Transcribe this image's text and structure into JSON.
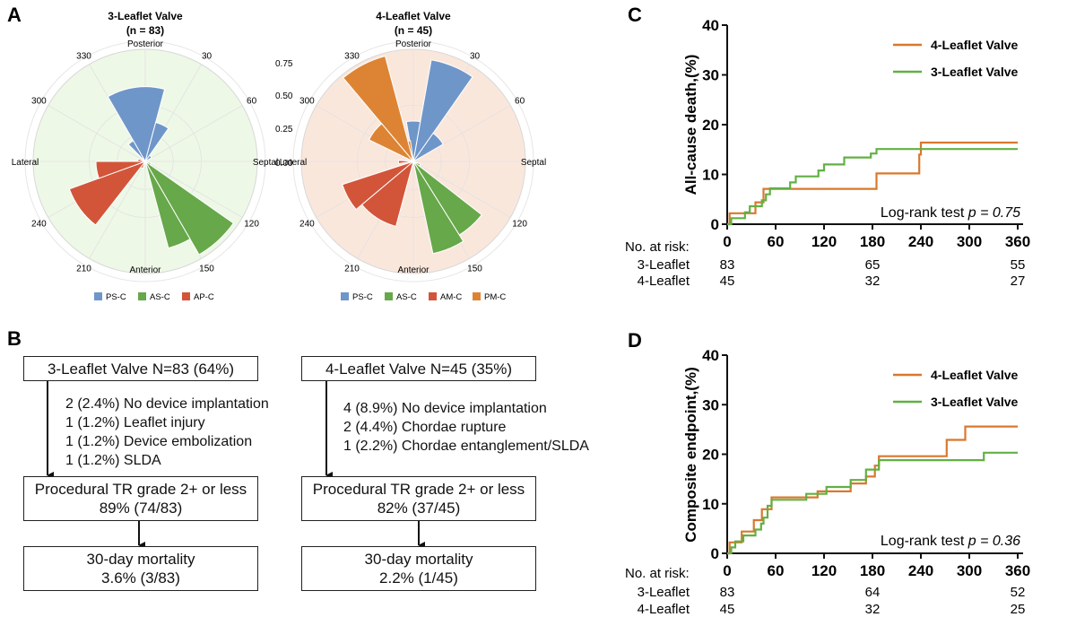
{
  "panels": {
    "A": "A",
    "B": "B",
    "C": "C",
    "D": "D"
  },
  "chart_data": [
    {
      "type": "polar-bar",
      "panel": "A",
      "title": "3-Leaflet Valve",
      "subtitle": "(n = 83)",
      "direction_labels": [
        "Posterior",
        "Septal",
        "Anterior",
        "Lateral"
      ],
      "angle_ticks": [
        "30",
        "60",
        "120",
        "150",
        "210",
        "240",
        "300",
        "330"
      ],
      "radial_ticks": [
        "0.00",
        "0.25",
        "0.50",
        "0.75"
      ],
      "rmax": 0.75,
      "legend": [
        {
          "name": "PS-C",
          "color": "#6f96c9"
        },
        {
          "name": "AS-C",
          "color": "#67a84a"
        },
        {
          "name": "AP-C",
          "color": "#d2553a"
        }
      ],
      "bars": [
        {
          "start": 330,
          "end": 15,
          "r": 0.5,
          "series": "PS-C"
        },
        {
          "start": 15,
          "end": 35,
          "r": 0.27,
          "series": "PS-C"
        },
        {
          "start": 35,
          "end": 60,
          "r": 0.05,
          "series": "PS-C"
        },
        {
          "start": 315,
          "end": 330,
          "r": 0.16,
          "series": "PS-C"
        },
        {
          "start": 105,
          "end": 125,
          "r": 0.04,
          "series": "AS-C"
        },
        {
          "start": 125,
          "end": 150,
          "r": 0.72,
          "series": "AS-C"
        },
        {
          "start": 150,
          "end": 165,
          "r": 0.6,
          "series": "AS-C"
        },
        {
          "start": 200,
          "end": 218,
          "r": 0.05,
          "series": "AP-C"
        },
        {
          "start": 218,
          "end": 250,
          "r": 0.54,
          "series": "AP-C"
        },
        {
          "start": 250,
          "end": 270,
          "r": 0.33,
          "series": "AP-C"
        },
        {
          "start": 270,
          "end": 290,
          "r": 0.05,
          "series": "AP-C"
        }
      ]
    },
    {
      "type": "polar-bar",
      "panel": "A",
      "title": "4-Leaflet Valve",
      "subtitle": "(n = 45)",
      "direction_labels": [
        "Posterior",
        "Septal",
        "Anterior",
        "Lateral"
      ],
      "angle_ticks": [
        "30",
        "60",
        "120",
        "150",
        "210",
        "240",
        "300",
        "330"
      ],
      "rmax": 0.75,
      "legend": [
        {
          "name": "PS-C",
          "color": "#6f96c9"
        },
        {
          "name": "AS-C",
          "color": "#67a84a"
        },
        {
          "name": "AM-C",
          "color": "#d2553a"
        },
        {
          "name": "PM-C",
          "color": "#dd8434"
        }
      ],
      "bars": [
        {
          "start": 350,
          "end": 10,
          "r": 0.27,
          "series": "PS-C"
        },
        {
          "start": 10,
          "end": 35,
          "r": 0.69,
          "series": "PS-C"
        },
        {
          "start": 35,
          "end": 60,
          "r": 0.23,
          "series": "PS-C"
        },
        {
          "start": 110,
          "end": 128,
          "r": 0.05,
          "series": "AS-C"
        },
        {
          "start": 128,
          "end": 148,
          "r": 0.58,
          "series": "AS-C"
        },
        {
          "start": 148,
          "end": 168,
          "r": 0.63,
          "series": "AS-C"
        },
        {
          "start": 195,
          "end": 230,
          "r": 0.45,
          "series": "AM-C"
        },
        {
          "start": 230,
          "end": 252,
          "r": 0.5,
          "series": "AM-C"
        },
        {
          "start": 262,
          "end": 274,
          "r": 0.1,
          "series": "AM-C"
        },
        {
          "start": 320,
          "end": 345,
          "r": 0.73,
          "series": "PM-C"
        },
        {
          "start": 296,
          "end": 320,
          "r": 0.33,
          "series": "PM-C"
        },
        {
          "start": 345,
          "end": 352,
          "r": 0.14,
          "series": "PM-C"
        }
      ]
    },
    {
      "type": "step-line",
      "panel": "C",
      "ylabel": "All-cause death,(%)",
      "xlim": [
        0,
        360
      ],
      "ylim": [
        0,
        40
      ],
      "xticks": [
        0,
        60,
        120,
        180,
        240,
        300,
        360
      ],
      "yticks": [
        0,
        10,
        20,
        30,
        40
      ],
      "annotation_prefix": "Log-rank test ",
      "annotation_p": "p = 0.75",
      "series": [
        {
          "name": "4-Leaflet Valve",
          "color": "#d9782d",
          "points": [
            [
              0,
              0
            ],
            [
              3,
              2.2
            ],
            [
              30,
              2.2
            ],
            [
              35,
              4.4
            ],
            [
              45,
              7.1
            ],
            [
              60,
              7.1
            ],
            [
              183,
              7.1
            ],
            [
              185,
              10.2
            ],
            [
              235,
              10.2
            ],
            [
              238,
              14
            ],
            [
              240,
              16.4
            ],
            [
              360,
              16.4
            ]
          ]
        },
        {
          "name": "3-Leaflet Valve",
          "color": "#62b043",
          "points": [
            [
              0,
              0
            ],
            [
              5,
              1.2
            ],
            [
              20,
              1.2
            ],
            [
              22,
              2.4
            ],
            [
              28,
              3.6
            ],
            [
              40,
              3.6
            ],
            [
              43,
              4.8
            ],
            [
              48,
              6.0
            ],
            [
              53,
              7.2
            ],
            [
              75,
              7.2
            ],
            [
              78,
              8.4
            ],
            [
              85,
              9.6
            ],
            [
              110,
              9.6
            ],
            [
              113,
              10.8
            ],
            [
              120,
              12.0
            ],
            [
              140,
              12.0
            ],
            [
              145,
              13.4
            ],
            [
              175,
              13.4
            ],
            [
              178,
              14.2
            ],
            [
              185,
              15.1
            ],
            [
              360,
              15.1
            ]
          ]
        }
      ],
      "risk_header": "No. at risk:",
      "risk_rows": [
        {
          "label": "3-Leaflet",
          "values": [
            "83",
            "65",
            "55"
          ]
        },
        {
          "label": "4-Leaflet",
          "values": [
            "45",
            "32",
            "27"
          ]
        }
      ],
      "risk_x": [
        0,
        180,
        360
      ]
    },
    {
      "type": "step-line",
      "panel": "D",
      "ylabel": "Composite endpoint,(%)",
      "xlim": [
        0,
        360
      ],
      "ylim": [
        0,
        40
      ],
      "xticks": [
        0,
        60,
        120,
        180,
        240,
        300,
        360
      ],
      "yticks": [
        0,
        10,
        20,
        30,
        40
      ],
      "annotation_prefix": "Log-rank test ",
      "annotation_p": "p = 0.36",
      "series": [
        {
          "name": "4-Leaflet Valve",
          "color": "#d9782d",
          "points": [
            [
              0,
              0
            ],
            [
              3,
              2.2
            ],
            [
              15,
              2.2
            ],
            [
              18,
              4.4
            ],
            [
              30,
              4.4
            ],
            [
              33,
              6.7
            ],
            [
              40,
              6.7
            ],
            [
              43,
              8.9
            ],
            [
              50,
              8.9
            ],
            [
              55,
              11.3
            ],
            [
              110,
              11.3
            ],
            [
              112,
              12.5
            ],
            [
              150,
              12.5
            ],
            [
              153,
              14.1
            ],
            [
              170,
              14.1
            ],
            [
              172,
              15.5
            ],
            [
              180,
              15.5
            ],
            [
              183,
              17.7
            ],
            [
              188,
              19.6
            ],
            [
              270,
              19.6
            ],
            [
              272,
              22.9
            ],
            [
              292,
              22.9
            ],
            [
              295,
              25.6
            ],
            [
              360,
              25.6
            ]
          ]
        },
        {
          "name": "3-Leaflet Valve",
          "color": "#62b043",
          "points": [
            [
              0,
              0
            ],
            [
              5,
              1.2
            ],
            [
              10,
              2.4
            ],
            [
              20,
              3.6
            ],
            [
              35,
              4.8
            ],
            [
              42,
              6.0
            ],
            [
              45,
              7.2
            ],
            [
              50,
              9.6
            ],
            [
              55,
              10.8
            ],
            [
              95,
              10.8
            ],
            [
              98,
              12.0
            ],
            [
              120,
              12.0
            ],
            [
              123,
              13.4
            ],
            [
              150,
              13.4
            ],
            [
              153,
              14.8
            ],
            [
              170,
              14.8
            ],
            [
              172,
              16.9
            ],
            [
              185,
              16.9
            ],
            [
              188,
              18.8
            ],
            [
              315,
              18.8
            ],
            [
              318,
              20.3
            ],
            [
              360,
              20.3
            ]
          ]
        }
      ],
      "risk_header": "No. at risk:",
      "risk_rows": [
        {
          "label": "3-Leaflet",
          "values": [
            "83",
            "64",
            "52"
          ]
        },
        {
          "label": "4-Leaflet",
          "values": [
            "45",
            "32",
            "25"
          ]
        }
      ],
      "risk_x": [
        0,
        180,
        360
      ]
    }
  ],
  "flow": {
    "left": {
      "top": "3-Leaflet Valve N=83 (64%)",
      "notes": [
        "2 (2.4%) No device implantation",
        "1 (1.2%) Leaflet injury",
        "1 (1.2%) Device embolization",
        "1 (1.2%) SLDA"
      ],
      "mid_line1": "Procedural TR grade 2+ or less",
      "mid_line2": "89% (74/83)",
      "bottom_line1": "30-day mortality",
      "bottom_line2": "3.6% (3/83)"
    },
    "right": {
      "top": "4-Leaflet Valve N=45 (35%)",
      "notes": [
        "4 (8.9%) No device implantation",
        "2 (4.4%) Chordae rupture",
        "1 (2.2%) Chordae entanglement/SLDA"
      ],
      "mid_line1": "Procedural TR grade 2+ or less",
      "mid_line2": "82% (37/45)",
      "bottom_line1": "30-day mortality",
      "bottom_line2": "2.2% (1/45)"
    }
  }
}
